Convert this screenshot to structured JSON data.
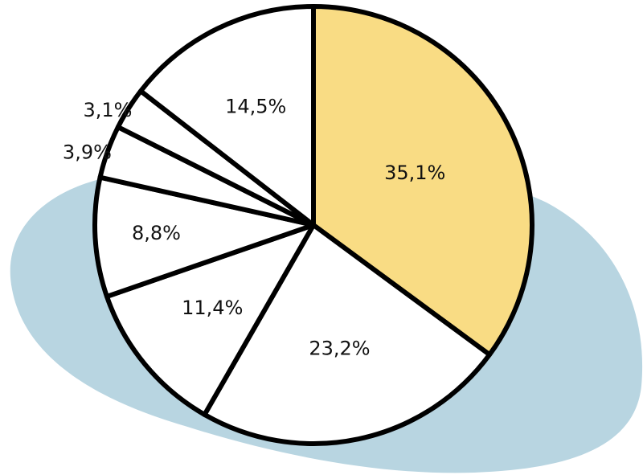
{
  "chart_data": {
    "type": "pie",
    "title": "",
    "slices": [
      {
        "label": "35,1%",
        "value": 35.1,
        "color": "#f9dc84"
      },
      {
        "label": "23,2%",
        "value": 23.2,
        "color": "#ffffff"
      },
      {
        "label": "11,4%",
        "value": 11.4,
        "color": "#ffffff"
      },
      {
        "label": "8,8%",
        "value": 8.8,
        "color": "#ffffff"
      },
      {
        "label": "3,9%",
        "value": 3.9,
        "color": "#ffffff"
      },
      {
        "label": "3,1%",
        "value": 3.1,
        "color": "#ffffff"
      },
      {
        "label": "14,5%",
        "value": 14.5,
        "color": "#ffffff"
      }
    ]
  },
  "colors": {
    "background_blob": "#b8d5e1",
    "highlight": "#f9dc84",
    "outline": "#000000"
  }
}
